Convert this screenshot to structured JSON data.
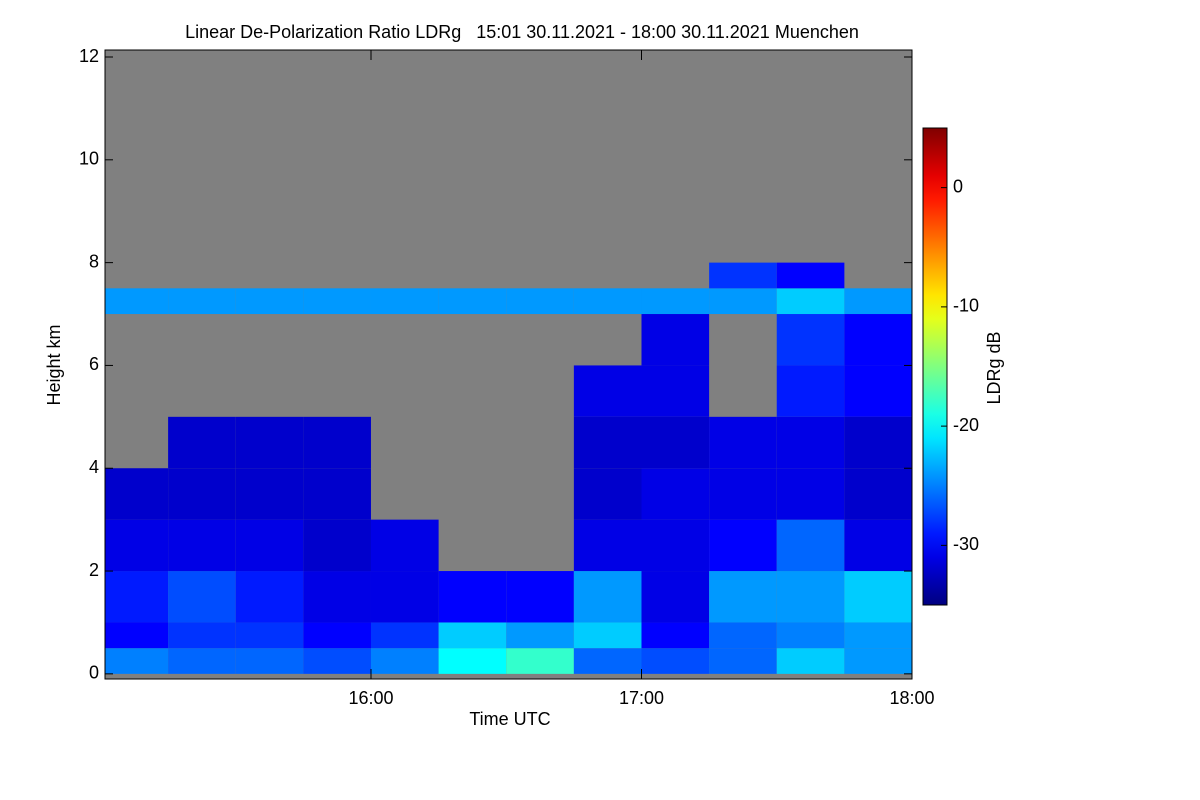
{
  "chart_data": {
    "type": "heatmap",
    "title": "Linear De-Polarization Ratio LDRg   15:01 30.11.2021 - 18:00 30.11.2021 Muenchen",
    "x_label": "Time UTC",
    "y_label": "Height km",
    "colorbar_label": "LDRg dB",
    "xlim": [
      15.0167,
      18.0
    ],
    "xticks": [
      {
        "value": 16,
        "label": "16:00"
      },
      {
        "value": 17,
        "label": "17:00"
      },
      {
        "value": 18,
        "label": "18:00"
      }
    ],
    "ylim": [
      -0.1,
      12
    ],
    "yticks": [
      0,
      2,
      4,
      6,
      8,
      10,
      12
    ],
    "clim": [
      -35,
      5
    ],
    "cticks": [
      0,
      -10,
      -20,
      -30
    ],
    "colormap": "jet",
    "missing_color": "#808080",
    "xbins": [
      15.0,
      15.25,
      15.5,
      15.75,
      16.0,
      16.25,
      16.5,
      16.75,
      17.0,
      17.25,
      17.5,
      17.75,
      18.0
    ],
    "ybins": [
      0,
      0.5,
      1,
      2,
      3,
      4,
      5,
      6,
      7,
      7.5,
      8
    ],
    "z": [
      [
        -25,
        -26,
        -26,
        -27,
        -25,
        -20,
        -18,
        -26,
        -27,
        -26,
        -22,
        -24
      ],
      [
        -30,
        -28,
        -28,
        -30,
        -28,
        -22,
        -24,
        -22,
        -30,
        -26,
        -25,
        -24
      ],
      [
        -29,
        -27,
        -29,
        -31,
        -31,
        -30,
        -30,
        -24,
        -31,
        -24,
        -24,
        -22
      ],
      [
        -31,
        -31,
        -31,
        -32,
        -31,
        null,
        null,
        -31,
        -31,
        -30,
        -26,
        -31
      ],
      [
        -32,
        -32,
        -32,
        -32,
        null,
        null,
        null,
        -32,
        -31,
        -31,
        -31,
        -32
      ],
      [
        null,
        -32,
        -32,
        -32,
        null,
        null,
        null,
        -32,
        -32,
        -31,
        -31,
        -32
      ],
      [
        null,
        null,
        null,
        null,
        null,
        null,
        null,
        -31,
        -31,
        null,
        -29,
        -30
      ],
      [
        null,
        null,
        null,
        null,
        null,
        null,
        null,
        null,
        -31,
        null,
        -28,
        -30
      ],
      [
        -24,
        -24,
        -24,
        -24,
        -24,
        -24,
        -24,
        -24,
        -24,
        -24,
        -22,
        -24
      ],
      [
        null,
        null,
        null,
        null,
        null,
        null,
        null,
        null,
        null,
        -28,
        -30,
        null
      ]
    ]
  }
}
